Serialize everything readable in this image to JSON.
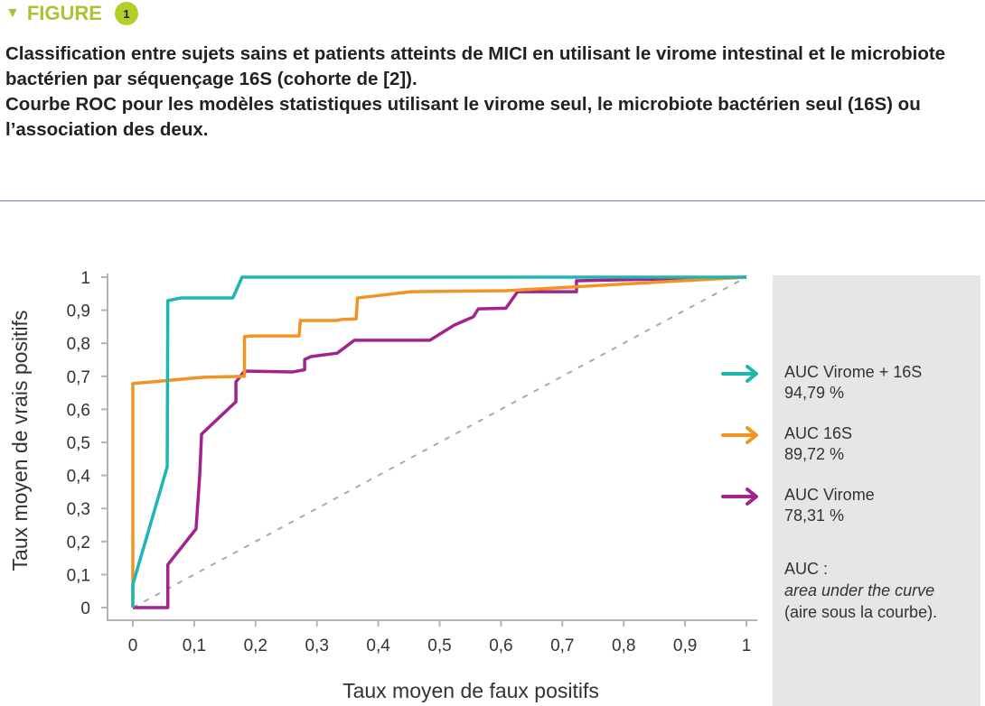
{
  "figure": {
    "label": "FIGURE",
    "number": "1",
    "accent": "#a8c432"
  },
  "caption": {
    "line1": "Classification entre sujets sains et patients atteints de MICI en utilisant le virome intestinal et le microbiote bactérien par séquençage 16S (cohorte de [2]).",
    "line2": "Courbe ROC pour les modèles statistiques utilisant le virome seul, le microbiote bactérien seul (16S) ou l’association des deux."
  },
  "chart_data": {
    "type": "line",
    "xlabel": "Taux moyen de faux positifs",
    "ylabel": "Taux moyen de vrais positifs",
    "xlim": [
      0,
      1
    ],
    "ylim": [
      0,
      1
    ],
    "xticks": [
      "0",
      "0,1",
      "0,2",
      "0,3",
      "0,4",
      "0,5",
      "0,6",
      "0,7",
      "0,8",
      "0,9",
      "1"
    ],
    "yticks": [
      "0",
      "0,1",
      "0,2",
      "0,3",
      "0,4",
      "0,5",
      "0,6",
      "0,7",
      "0,8",
      "0,9",
      "1"
    ],
    "grid": false,
    "legend_position": "right",
    "series": [
      {
        "name": "AUC Virome + 16S",
        "value": "94,79 %",
        "color": "#1fb5b0",
        "points": [
          [
            0,
            0
          ],
          [
            0,
            0.07
          ],
          [
            0.056,
            0.426
          ],
          [
            0.057,
            0.929
          ],
          [
            0.078,
            0.937
          ],
          [
            0.163,
            0.937
          ],
          [
            0.178,
            1
          ],
          [
            1,
            1
          ]
        ]
      },
      {
        "name": "AUC 16S",
        "value": "89,72 %",
        "color": "#f39322",
        "points": [
          [
            0,
            0
          ],
          [
            0,
            0.678
          ],
          [
            0.115,
            0.697
          ],
          [
            0.182,
            0.7
          ],
          [
            0.182,
            0.82
          ],
          [
            0.193,
            0.822
          ],
          [
            0.271,
            0.822
          ],
          [
            0.273,
            0.869
          ],
          [
            0.333,
            0.869
          ],
          [
            0.34,
            0.872
          ],
          [
            0.364,
            0.874
          ],
          [
            0.366,
            0.937
          ],
          [
            0.453,
            0.956
          ],
          [
            0.608,
            0.959
          ],
          [
            1,
            1
          ]
        ]
      },
      {
        "name": "AUC Virome",
        "value": "78,31 %",
        "color": "#a3238e",
        "points": [
          [
            0,
            0
          ],
          [
            0.057,
            0
          ],
          [
            0.057,
            0.13
          ],
          [
            0.103,
            0.238
          ],
          [
            0.109,
            0.4
          ],
          [
            0.112,
            0.525
          ],
          [
            0.168,
            0.623
          ],
          [
            0.168,
            0.683
          ],
          [
            0.182,
            0.716
          ],
          [
            0.26,
            0.713
          ],
          [
            0.28,
            0.72
          ],
          [
            0.28,
            0.751
          ],
          [
            0.291,
            0.76
          ],
          [
            0.333,
            0.77
          ],
          [
            0.361,
            0.809
          ],
          [
            0.484,
            0.809
          ],
          [
            0.524,
            0.855
          ],
          [
            0.555,
            0.88
          ],
          [
            0.563,
            0.904
          ],
          [
            0.608,
            0.906
          ],
          [
            0.627,
            0.956
          ],
          [
            0.723,
            0.956
          ],
          [
            0.723,
            0.989
          ],
          [
            1,
            1
          ]
        ]
      }
    ],
    "reference_line": {
      "points": [
        [
          0,
          0
        ],
        [
          1,
          1
        ]
      ],
      "style": "dashed",
      "color": "#aaaaaa"
    }
  },
  "note": {
    "title": "AUC :",
    "italic": "area under the curve",
    "text": "(aire sous la courbe)."
  }
}
